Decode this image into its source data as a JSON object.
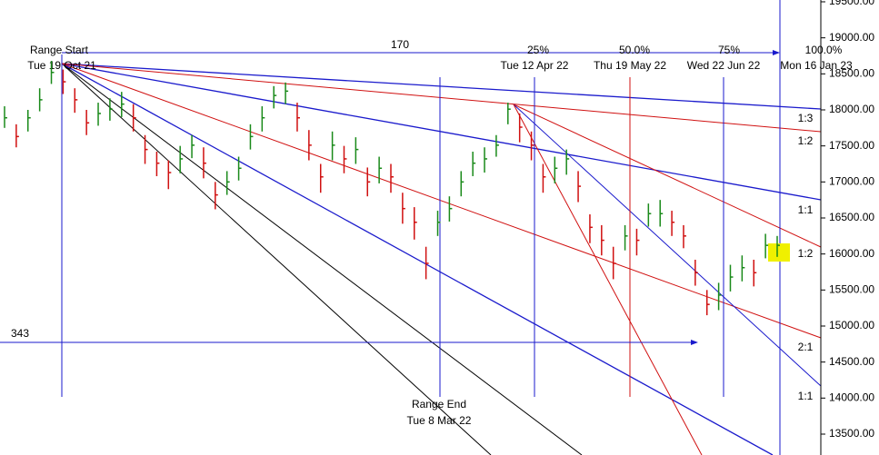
{
  "chart_data": {
    "type": "ohlc",
    "categories": [
      null,
      null,
      null,
      null,
      null,
      null,
      null,
      null,
      null,
      null,
      null,
      null,
      null,
      null,
      null,
      null,
      null,
      null,
      null,
      null,
      null,
      null,
      null,
      null,
      null,
      null,
      null,
      null,
      null,
      null,
      null,
      null,
      null,
      null,
      null,
      null,
      null,
      null,
      null,
      null,
      null,
      null,
      null,
      null,
      null,
      null,
      null,
      null,
      null,
      null,
      null,
      null,
      null,
      null,
      null,
      null,
      null,
      null,
      null,
      null,
      null,
      null,
      null,
      null,
      null,
      null,
      null
    ],
    "series": [
      {
        "up_color": "#1a8a1a",
        "down_color": "#d01010",
        "values": [
          17890,
          17630,
          17890,
          18140,
          18520,
          18390,
          18140,
          17820,
          17950,
          18010,
          18080,
          17890,
          17450,
          17260,
          17130,
          17320,
          17510,
          17260,
          16820,
          17000,
          17190,
          17630,
          17890,
          18200,
          18260,
          17890,
          17510,
          17070,
          17510,
          17320,
          17450,
          17000,
          17190,
          17070,
          16630,
          16440,
          15870,
          16440,
          16630,
          17000,
          17260,
          17320,
          17510,
          18010,
          17760,
          17510,
          17070,
          17190,
          17320,
          16940,
          16370,
          16190,
          15870,
          16250,
          16190,
          16560,
          16560,
          16440,
          16250,
          15740,
          15300,
          15430,
          15680,
          15810,
          15740,
          16120,
          16120
        ],
        "high": [
          18050,
          17800,
          18000,
          18300,
          18680,
          18560,
          18300,
          18000,
          18100,
          18160,
          18250,
          18080,
          17650,
          17420,
          17300,
          17500,
          17650,
          17480,
          17000,
          17150,
          17350,
          17800,
          18050,
          18330,
          18380,
          18100,
          17720,
          17250,
          17700,
          17500,
          17620,
          17200,
          17350,
          17250,
          16850,
          16650,
          16100,
          16600,
          16800,
          17150,
          17420,
          17480,
          17650,
          18100,
          17950,
          17700,
          17250,
          17350,
          17450,
          17150,
          16550,
          16400,
          16100,
          16400,
          16350,
          16700,
          16750,
          16600,
          16400,
          15920,
          15500,
          15600,
          15850,
          15980,
          15920,
          16280,
          16250
        ],
        "low": [
          17750,
          17480,
          17700,
          17980,
          18360,
          18220,
          17960,
          17650,
          17780,
          17850,
          17900,
          17700,
          17250,
          17080,
          16900,
          17120,
          17330,
          17050,
          16620,
          16820,
          17020,
          17450,
          17700,
          18020,
          18080,
          17700,
          17300,
          16850,
          17300,
          17120,
          17250,
          16800,
          16980,
          16850,
          16420,
          16200,
          15650,
          16250,
          16450,
          16800,
          17080,
          17130,
          17350,
          17800,
          17550,
          17300,
          16850,
          16980,
          17100,
          16720,
          16150,
          15980,
          15650,
          16050,
          15980,
          16380,
          16380,
          16250,
          16080,
          15560,
          15150,
          15220,
          15480,
          15620,
          15550,
          15940,
          15960
        ]
      }
    ],
    "ylim": [
      13210,
      19525
    ],
    "yticks": [
      {
        "value": 13500,
        "label": "13500.00"
      },
      {
        "value": 14000,
        "label": "14000.00"
      },
      {
        "value": 14500,
        "label": "14500.00"
      },
      {
        "value": 15000,
        "label": "15000.00"
      },
      {
        "value": 15500,
        "label": "15500.00"
      },
      {
        "value": 16000,
        "label": "16000.00"
      },
      {
        "value": 16500,
        "label": "16500.00"
      },
      {
        "value": 17000,
        "label": "17000.00"
      },
      {
        "value": 17500,
        "label": "17500.00"
      },
      {
        "value": 18000,
        "label": "18000.00"
      },
      {
        "value": 18500,
        "label": "18500.00"
      },
      {
        "value": 19000,
        "label": "19000.00"
      },
      {
        "value": 19500,
        "label": "19500.00"
      }
    ],
    "annotations": [
      "Range Start",
      "Tue 19 Oct 21",
      170,
      "25%",
      "Tue 12 Apr 22",
      "50.0%",
      "Thu 19 May 22",
      "75%",
      "Wed 22 Jun 22",
      "100.0%",
      "Mon 16 Jan 23",
      "1:3",
      "1:2",
      "1:1",
      "1:2",
      "2:1",
      "1:1",
      343,
      "Range End",
      "Tue 8 Mar 22"
    ]
  }
}
